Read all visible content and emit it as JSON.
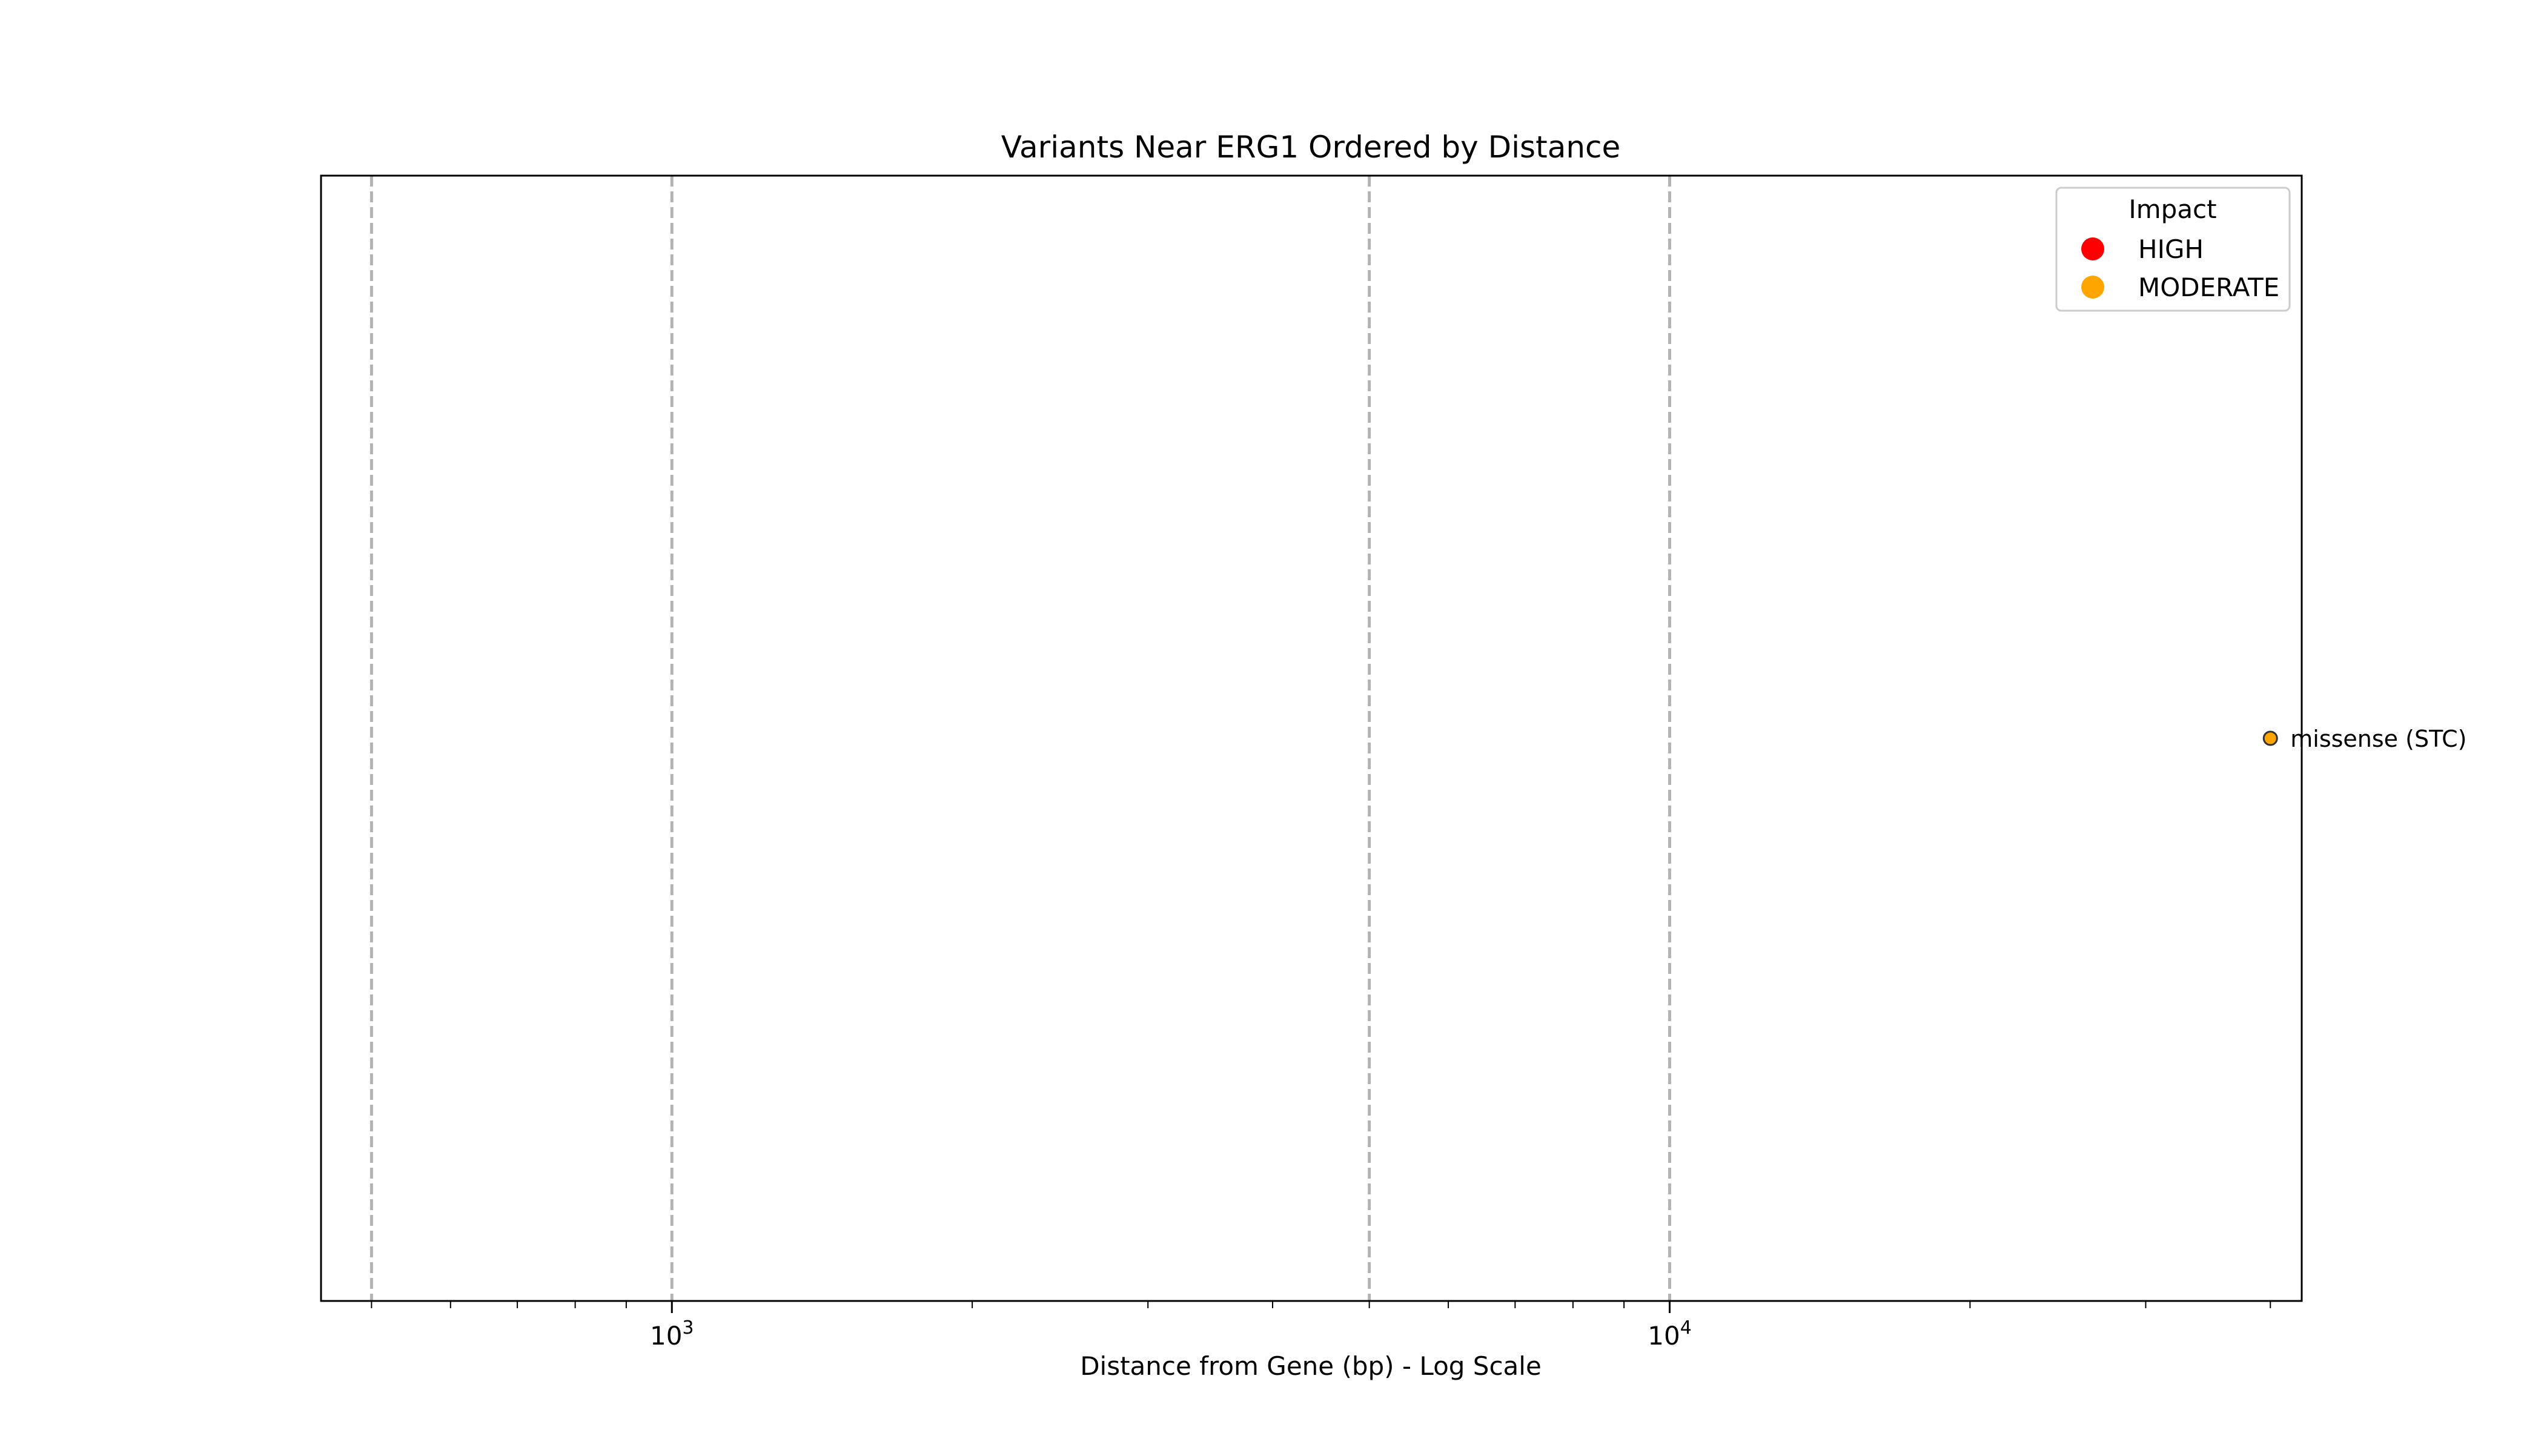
{
  "chart_data": {
    "type": "scatter",
    "title": "Variants Near ERG1 Ordered by Distance",
    "xlabel": "Distance from Gene (bp) - Log Scale",
    "ylabel": "",
    "x_scale": "log",
    "xlim": [
      445,
      43000
    ],
    "ylim": [
      -0.5,
      0.5
    ],
    "x_ticks": [
      {
        "value": 1000,
        "base": "10",
        "exp": "3"
      },
      {
        "value": 10000,
        "base": "10",
        "exp": "4"
      }
    ],
    "reference_lines": [
      500,
      1000,
      5000,
      10000
    ],
    "grid": false,
    "legend": {
      "title": "Impact",
      "placement": "top-right",
      "entries": [
        {
          "label": "HIGH",
          "color": "#ff0000"
        },
        {
          "label": "MODERATE",
          "color": "#ffa500"
        }
      ]
    },
    "points": [
      {
        "x": 40000,
        "y": 0,
        "impact": "MODERATE",
        "label": "missense (STC)",
        "color": "#ffa500"
      }
    ]
  }
}
